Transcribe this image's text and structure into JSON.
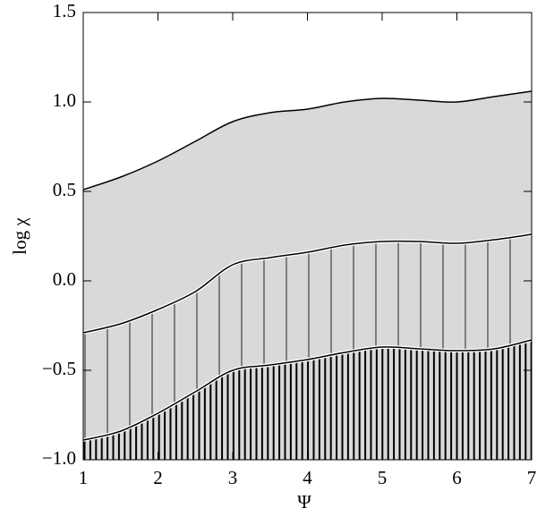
{
  "chart_data": {
    "type": "area",
    "x": [
      1,
      1.5,
      2,
      2.5,
      3,
      3.5,
      4,
      4.5,
      5,
      5.5,
      6,
      6.5,
      7
    ],
    "series": [
      {
        "color": "#d9d9d9",
        "values": [
          0.51,
          0.58,
          0.67,
          0.78,
          0.89,
          0.94,
          0.96,
          1.0,
          1.02,
          1.01,
          1.0,
          1.03,
          1.06
        ]
      },
      {
        "color": "#d9d9d9",
        "values": [
          -0.29,
          -0.24,
          -0.16,
          -0.06,
          0.09,
          0.13,
          0.16,
          0.2,
          0.22,
          0.22,
          0.21,
          0.23,
          0.26
        ]
      },
      {
        "color": "#d9d9d9",
        "values": [
          -0.89,
          -0.84,
          -0.74,
          -0.62,
          -0.5,
          -0.47,
          -0.44,
          -0.4,
          -0.37,
          -0.38,
          -0.39,
          -0.38,
          -0.33
        ]
      }
    ],
    "hatch": [
      null,
      "sparse",
      "dense"
    ],
    "xlim": [
      1,
      7
    ],
    "ylim": [
      -1,
      1.5
    ],
    "xticks": [
      1,
      2,
      3,
      4,
      5,
      6,
      7
    ],
    "yticks": [
      {
        "value": -1,
        "label": "−1.0"
      },
      {
        "value": -0.5,
        "label": "−0.5"
      },
      {
        "value": 0,
        "label": "0.0"
      },
      {
        "value": 0.5,
        "label": "0.5"
      },
      {
        "value": 1,
        "label": "1.0"
      },
      {
        "value": 1.5,
        "label": "1.5"
      }
    ],
    "xlabel": "Ψ",
    "ylabel": "log χ"
  }
}
